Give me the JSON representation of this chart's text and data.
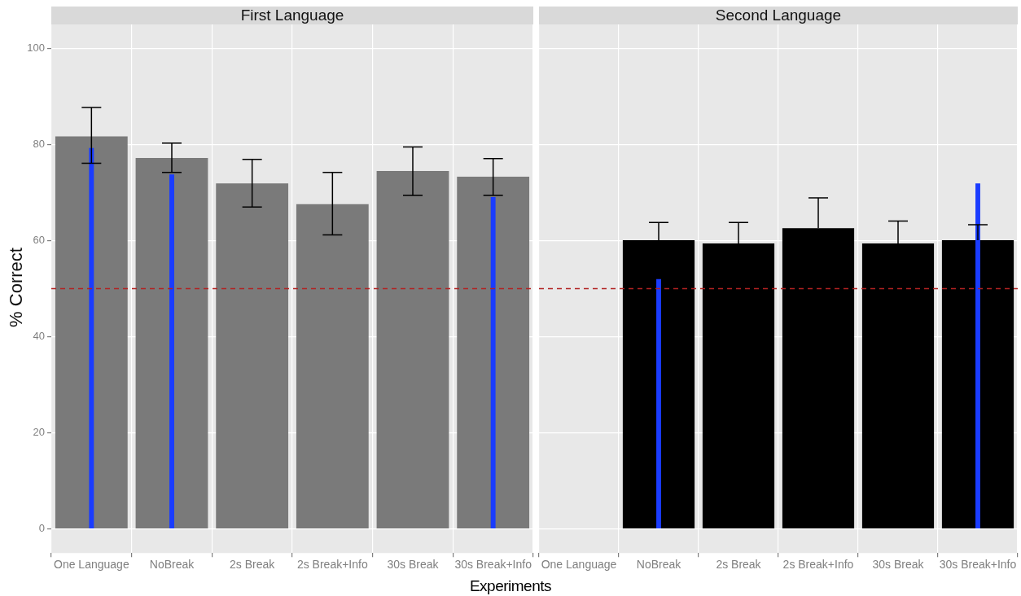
{
  "chart_data": [
    {
      "type": "bar",
      "title": "First Language",
      "xlabel": "Experiments",
      "ylabel": "% Correct",
      "categories": [
        "One Language",
        "NoBreak",
        "2s Break",
        "2s Break+Info",
        "30s Break",
        "30s Break+Info"
      ],
      "series": [
        {
          "color": "#7a7a7a",
          "values": [
            81.7,
            77.2,
            71.9,
            67.6,
            74.5,
            73.3
          ],
          "errors": [
            [
              76.1,
              87.7
            ],
            [
              74.2,
              80.3
            ],
            [
              67.0,
              76.9
            ],
            [
              61.2,
              74.2
            ],
            [
              69.4,
              79.5
            ],
            [
              69.4,
              77.1
            ]
          ]
        },
        {
          "color": "#1a3cff",
          "values": [
            79.3,
            73.8,
            null,
            null,
            null,
            69.1
          ]
        }
      ],
      "ylim": [
        -5,
        105
      ],
      "yticks": [
        0,
        20,
        40,
        60,
        80,
        100
      ],
      "grid": true,
      "legend": false,
      "ref_lines": [
        {
          "axis": "y",
          "value": 50,
          "color": "#b22222",
          "line_style": "dashed"
        }
      ]
    },
    {
      "type": "bar",
      "title": "Second Language",
      "categories": [
        "One Language",
        "NoBreak",
        "2s Break",
        "2s Break+Info",
        "30s Break",
        "30s Break+Info"
      ],
      "series": [
        {
          "color": "#000000",
          "values": [
            null,
            60.1,
            59.4,
            62.6,
            59.4,
            60.1
          ],
          "errors": [
            null,
            [
              60.1,
              63.8
            ],
            [
              59.4,
              63.8
            ],
            [
              62.6,
              68.9
            ],
            [
              59.4,
              64.1
            ],
            [
              60.1,
              63.3
            ]
          ]
        },
        {
          "color": "#1a3cff",
          "values": [
            null,
            52.0,
            null,
            null,
            null,
            71.9
          ]
        }
      ],
      "ylim": [
        -5,
        105
      ],
      "yticks": [
        0,
        20,
        40,
        60,
        80,
        100
      ],
      "grid": true,
      "legend": false,
      "tick_labels": "x",
      "ref_lines": [
        {
          "axis": "y",
          "value": 50,
          "color": "#b22222",
          "line_style": "dashed"
        }
      ]
    }
  ]
}
